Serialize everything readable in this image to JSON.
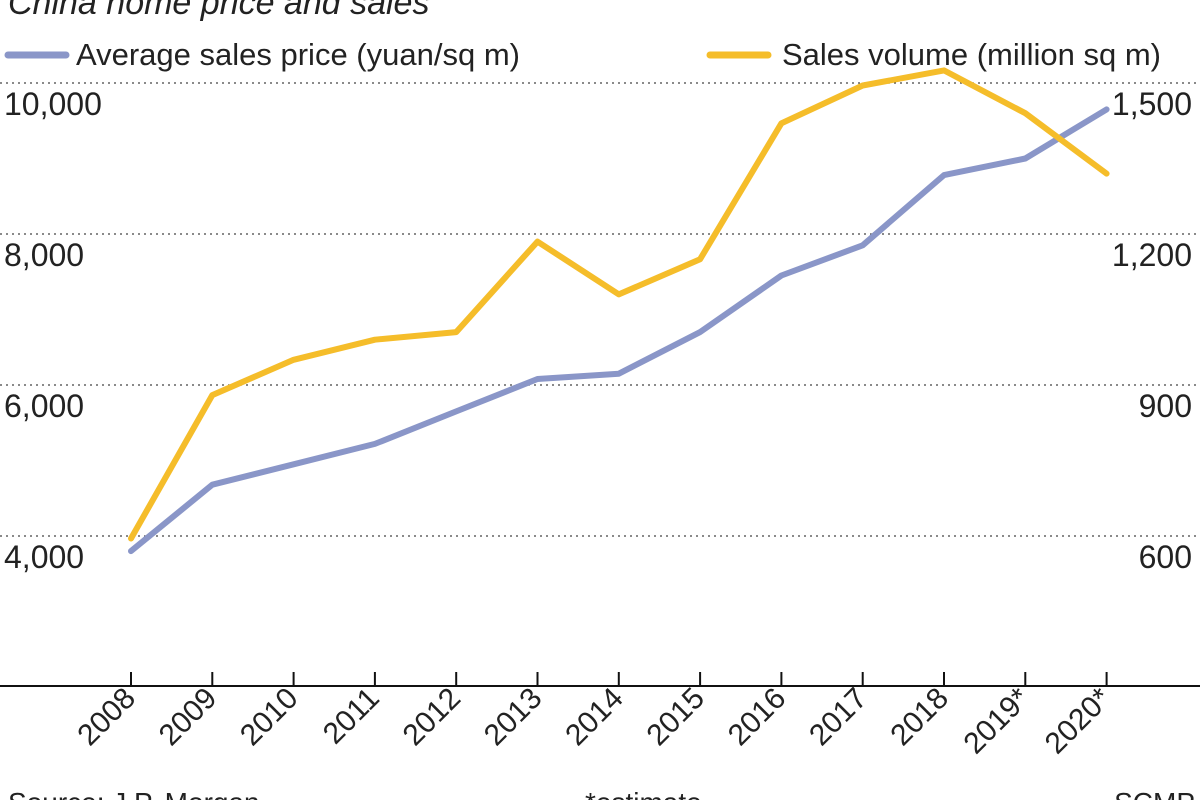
{
  "chart_data": {
    "type": "line",
    "title": "China home price and sales",
    "categories": [
      "2008",
      "2009",
      "2010",
      "2011",
      "2012",
      "2013",
      "2014",
      "2015",
      "2016",
      "2017",
      "2018",
      "2019*",
      "2020*"
    ],
    "series": [
      {
        "name": "Average sales price (yuan/sq m)",
        "axis": "left",
        "color": "#8a96c8",
        "values": [
          3800,
          4680,
          4950,
          5220,
          5650,
          6080,
          6150,
          6700,
          7450,
          7850,
          8780,
          9000,
          9650
        ]
      },
      {
        "name": "Sales volume (million sq m)",
        "axis": "right",
        "color": "#f5bd2a",
        "values": [
          595,
          880,
          950,
          990,
          1005,
          1185,
          1080,
          1150,
          1420,
          1495,
          1525,
          1440,
          1320
        ]
      }
    ],
    "y_left": {
      "range": [
        4000,
        10000
      ],
      "ticks": [
        "4,000",
        "6,000",
        "8,000",
        "10,000"
      ],
      "tick_values": [
        4000,
        6000,
        8000,
        10000
      ]
    },
    "y_right": {
      "range": [
        600,
        1500
      ],
      "ticks": [
        "600",
        "900",
        "1,200",
        "1,500"
      ],
      "tick_values": [
        600,
        900,
        1200,
        1500
      ]
    },
    "grid": "dotted horizontal",
    "legend": "top"
  },
  "footer": {
    "source": "Source: J.P. Morgan",
    "note": "*estimate",
    "credit": "SCMP"
  }
}
